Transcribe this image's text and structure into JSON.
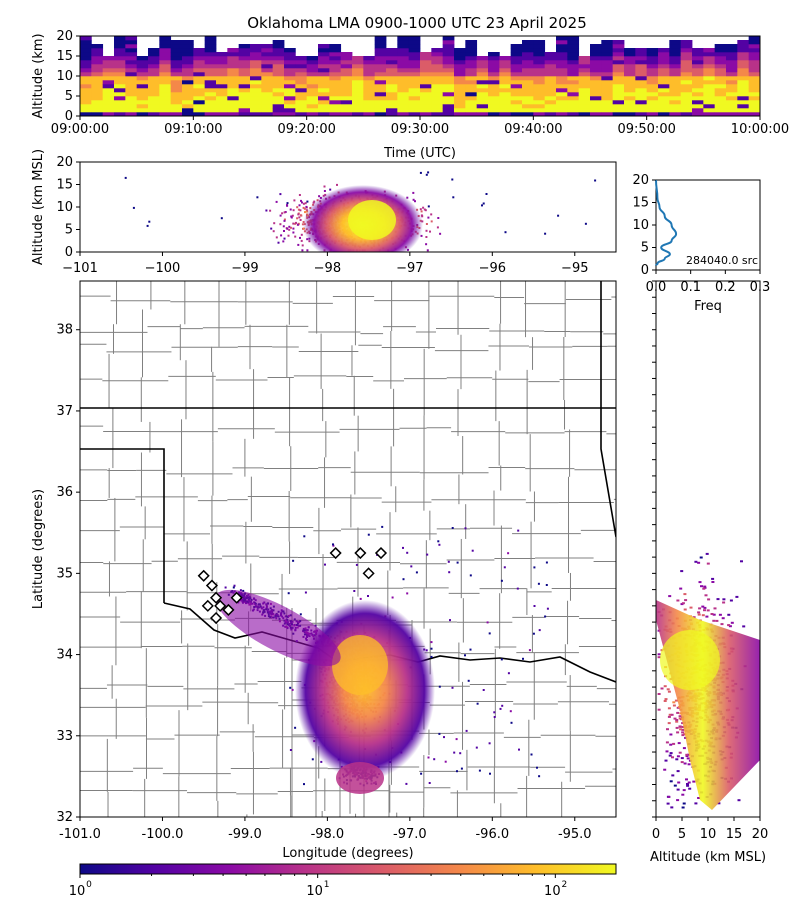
{
  "title": "Oklahoma LMA 0900-1000 UTC 23 April 2025",
  "colors": {
    "plasma": [
      "#0d0887",
      "#5302a3",
      "#8b0aa5",
      "#b83289",
      "#db5c68",
      "#f48849",
      "#febd2a",
      "#f0f921"
    ],
    "county_lines": "#808080",
    "state_lines": "#000000",
    "hist_line": "#1f77b4",
    "station_marker": "#000000"
  },
  "panels": {
    "time_height": {
      "ylabel": "Altitude (km)",
      "xlabel": "Time (UTC)",
      "yticks": [
        "0",
        "5",
        "10",
        "15",
        "20"
      ],
      "xticks": [
        "09:00:00",
        "09:10:00",
        "09:20:00",
        "09:30:00",
        "09:40:00",
        "09:50:00",
        "10:00:00"
      ]
    },
    "lon_alt": {
      "ylabel": "Altitude (km MSL)",
      "yticks": [
        "0",
        "5",
        "10",
        "15",
        "20"
      ],
      "xticks": [
        "−101",
        "−100",
        "−99",
        "−98",
        "−97",
        "−96",
        "−95"
      ]
    },
    "histogram": {
      "xlabel": "Freq",
      "yticks": [
        "0",
        "5",
        "10",
        "15",
        "20"
      ],
      "xticks": [
        "0.0",
        "0.1",
        "0.2",
        "0.3"
      ],
      "annotation": "284040.0 src"
    },
    "map": {
      "xlabel": "Longitude (degrees)",
      "ylabel": "Latitude (degrees)",
      "xticks": [
        "-101.0",
        "-100.0",
        "-99.0",
        "-98.0",
        "-97.0",
        "-96.0",
        "-95.0"
      ],
      "yticks": [
        "32",
        "33",
        "34",
        "35",
        "36",
        "37",
        "38"
      ]
    },
    "alt_lat": {
      "xlabel": "Altitude (km MSL)",
      "xticks": [
        "0",
        "5",
        "10",
        "15",
        "20"
      ]
    },
    "colorbar": {
      "ticks": [
        "10",
        "10",
        "10"
      ],
      "exponents": [
        "0",
        "1",
        "2"
      ]
    }
  },
  "chart_data": [
    {
      "type": "heatmap",
      "name": "time-height",
      "xlim": [
        "09:00:00",
        "10:00:00"
      ],
      "ylim": [
        0,
        20
      ],
      "bins_x": 60,
      "dense_altitude_km": [
        2,
        10
      ],
      "scale": "log"
    },
    {
      "type": "heatmap",
      "name": "longitude-altitude",
      "xlim": [
        -101.0,
        -94.5
      ],
      "ylim": [
        0,
        20
      ],
      "peak": {
        "longitude": -97.6,
        "altitude_km": 8
      }
    },
    {
      "type": "line",
      "name": "altitude-histogram",
      "x_label": "Freq",
      "y_label": "Altitude",
      "xlim": [
        0.0,
        0.3
      ],
      "ylim": [
        0,
        20
      ],
      "points": [
        [
          0.0,
          20
        ],
        [
          0.004,
          16
        ],
        [
          0.01,
          14
        ],
        [
          0.025,
          12
        ],
        [
          0.045,
          10
        ],
        [
          0.058,
          8
        ],
        [
          0.045,
          6.5
        ],
        [
          0.015,
          5
        ],
        [
          0.04,
          3.5
        ],
        [
          0.025,
          2.5
        ],
        [
          0.005,
          1.5
        ],
        [
          0.0,
          1.0
        ]
      ],
      "total_sources": 284040.0
    },
    {
      "type": "heatmap",
      "name": "plan-view",
      "xlim": [
        -101.0,
        -94.5
      ],
      "ylim": [
        32.0,
        38.6
      ],
      "density_core": {
        "longitude": [
          -98.2,
          -97.3
        ],
        "latitude": [
          33.0,
          34.3
        ]
      },
      "stations": [
        [
          -99.5,
          34.97
        ],
        [
          -99.4,
          34.85
        ],
        [
          -99.35,
          34.7
        ],
        [
          -99.3,
          34.6
        ],
        [
          -99.45,
          34.6
        ],
        [
          -99.2,
          34.55
        ],
        [
          -99.35,
          34.45
        ],
        [
          -99.1,
          34.7
        ],
        [
          -97.9,
          35.25
        ],
        [
          -97.6,
          35.25
        ],
        [
          -97.35,
          35.25
        ],
        [
          -97.5,
          35.0
        ]
      ]
    },
    {
      "type": "heatmap",
      "name": "altitude-latitude",
      "xlim": [
        0,
        20
      ],
      "ylim": [
        32.0,
        38.6
      ]
    },
    {
      "type": "colorbar",
      "scale": "log",
      "range": [
        1,
        180
      ]
    }
  ]
}
